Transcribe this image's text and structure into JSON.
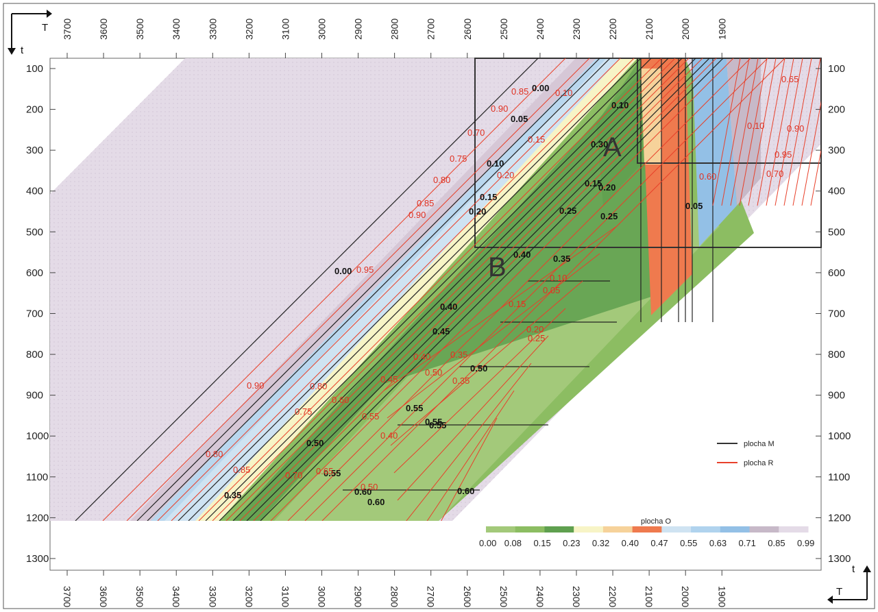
{
  "chart_data": {
    "type": "contour",
    "x_axis": {
      "label": "T",
      "ticks": [
        3700,
        3600,
        3500,
        3400,
        3300,
        3200,
        3100,
        3000,
        2900,
        2800,
        2700,
        2600,
        2500,
        2400,
        2300,
        2200,
        2100,
        2000,
        1900
      ],
      "bottom_tick_labels": [
        "3700",
        "3600",
        "3500",
        "3400",
        "3300",
        "3200",
        "3100",
        "3000",
        "2900",
        "2800",
        "2700",
        "2600",
        "2500",
        "2400",
        "2300",
        "2200",
        "2100",
        "2000",
        "1900"
      ],
      "reversed": true
    },
    "y_axis": {
      "label": "t",
      "ticks": [
        100,
        200,
        300,
        400,
        500,
        600,
        700,
        800,
        900,
        1000,
        1100,
        1200,
        1300
      ],
      "reversed": true
    },
    "regions": [
      {
        "label": "A",
        "T": [
          2300,
          1850
        ],
        "t": [
          75,
          315
        ]
      },
      {
        "label": "B",
        "T": [
          2700,
          1850
        ],
        "t": [
          75,
          535
        ]
      }
    ],
    "legend": [
      {
        "name": "plocha M",
        "color": "#333333"
      },
      {
        "name": "plocha R",
        "color": "#e8402a"
      }
    ],
    "colorbar": {
      "title": "plocha O",
      "tick_labels": [
        "0.00",
        "0.08",
        "0.15",
        "0.23",
        "0.32",
        "0.40",
        "0.47",
        "0.55",
        "0.63",
        "0.71",
        "0.85",
        "0.99"
      ],
      "colors": [
        "#a3c97a",
        "#8cbd62",
        "#5fa04f",
        "#f7f4c6",
        "#f6d29a",
        "#ef7a4e",
        "#cfe3f2",
        "#b0d3ee",
        "#93c0e6",
        "#c7b9c8",
        "#e4dbe7"
      ]
    },
    "contour_labels_M": [
      "0.00",
      "0.05",
      "0.10",
      "0.15",
      "0.20",
      "0.25",
      "0.30",
      "0.35",
      "0.40",
      "0.45",
      "0.50",
      "0.55",
      "0.60"
    ],
    "contour_labels_R": [
      "0.05",
      "0.10",
      "0.15",
      "0.20",
      "0.25",
      "0.30",
      "0.35",
      "0.40",
      "0.45",
      "0.50",
      "0.55",
      "0.60",
      "0.65",
      "0.70",
      "0.75",
      "0.80",
      "0.85",
      "0.90",
      "0.95"
    ]
  }
}
